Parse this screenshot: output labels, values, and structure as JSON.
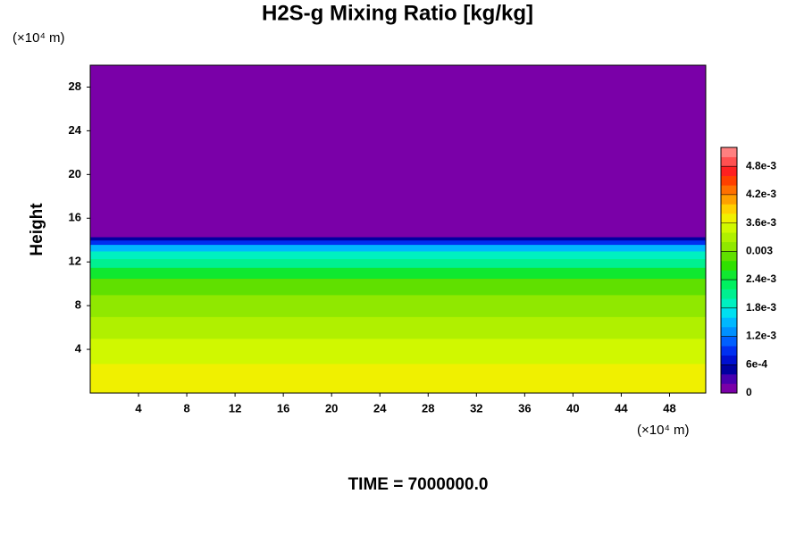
{
  "chart_data": {
    "type": "heatmap",
    "title": "H2S-g Mixing Ratio [kg/kg]",
    "ylabel": "Height",
    "y_unit": "(×10⁴ m)",
    "x_unit": "(×10⁴ m)",
    "footer": "TIME = 7000000.0",
    "xlim": [
      0,
      51
    ],
    "xticks": [
      4,
      8,
      12,
      16,
      20,
      24,
      28,
      32,
      36,
      40,
      44,
      48
    ],
    "ylim": [
      0,
      30
    ],
    "yticks": [
      4,
      8,
      12,
      16,
      20,
      24,
      28
    ],
    "y_bins": [
      0,
      2.7,
      5,
      7,
      9,
      10.5,
      11.5,
      12.3,
      13,
      13.6,
      14,
      14.3,
      30
    ],
    "values": [
      0.0036,
      0.0034,
      0.0032,
      0.003,
      0.0028,
      0.0025,
      0.0021,
      0.0018,
      0.0014,
      0.0009,
      0.0004,
      0
    ],
    "clim": [
      0,
      0.0052
    ],
    "cticks": [
      0,
      {
        "value": 0.0006,
        "label": "6e-4"
      },
      {
        "value": 0.0012,
        "label": "1.2e-3"
      },
      {
        "value": 0.0018,
        "label": "1.8e-3"
      },
      {
        "value": 0.0024,
        "label": "2.4e-3"
      },
      0.003,
      {
        "value": 0.0036,
        "label": "3.6e-3"
      },
      {
        "value": 0.0042,
        "label": "4.2e-3"
      },
      {
        "value": 0.0048,
        "label": "4.8e-3"
      }
    ],
    "colormap": [
      "#7a00a8",
      "#4800b0",
      "#0000a0",
      "#0010d0",
      "#0030f0",
      "#0060ff",
      "#0090ff",
      "#00b8ff",
      "#00e0f0",
      "#00f0c0",
      "#00f090",
      "#00f060",
      "#10e830",
      "#30e000",
      "#60e000",
      "#90e800",
      "#b0f000",
      "#d0f800",
      "#f0f000",
      "#ffd000",
      "#ffa000",
      "#ff7000",
      "#ff4000",
      "#ff2020",
      "#ff5050",
      "#ff8080"
    ]
  }
}
